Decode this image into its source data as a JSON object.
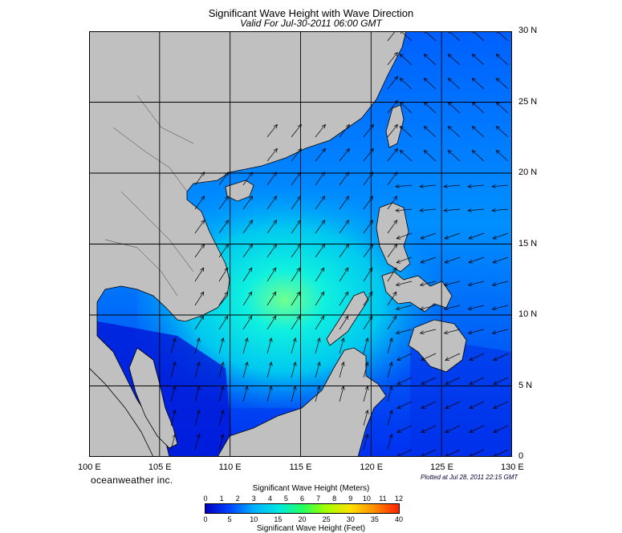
{
  "title": "Significant Wave Height with Wave Direction",
  "subtitle": "Valid For Jul-30-2011 06:00 GMT",
  "brand": "oceanweather inc.",
  "plotted": "Plotted at Jul 28, 2011 22:15 GMT",
  "lat_labels": [
    "30 N",
    "25 N",
    "20 N",
    "15 N",
    "10 N",
    "5 N",
    "0"
  ],
  "lon_labels": [
    "100 E",
    "105 E",
    "110 E",
    "115 E",
    "120 E",
    "125 E",
    "130 E"
  ],
  "colorbar": {
    "meters_label": "Significant Wave Height (Meters)",
    "feet_label": "Significant Wave Height (Feet)",
    "meters_ticks": [
      "0",
      "1",
      "2",
      "3",
      "4",
      "5",
      "6",
      "7",
      "8",
      "9",
      "10",
      "11",
      "12"
    ],
    "feet_ticks": [
      "0",
      "5",
      "10",
      "15",
      "20",
      "25",
      "30",
      "35",
      "40"
    ]
  },
  "colors": {
    "land": "#c0c0c0",
    "ocean_low": "#0000e0",
    "ocean_mid": "#0088ff",
    "ocean_high": "#00e0e0",
    "ocean_peak": "#60ff80",
    "grid": "#000000"
  }
}
